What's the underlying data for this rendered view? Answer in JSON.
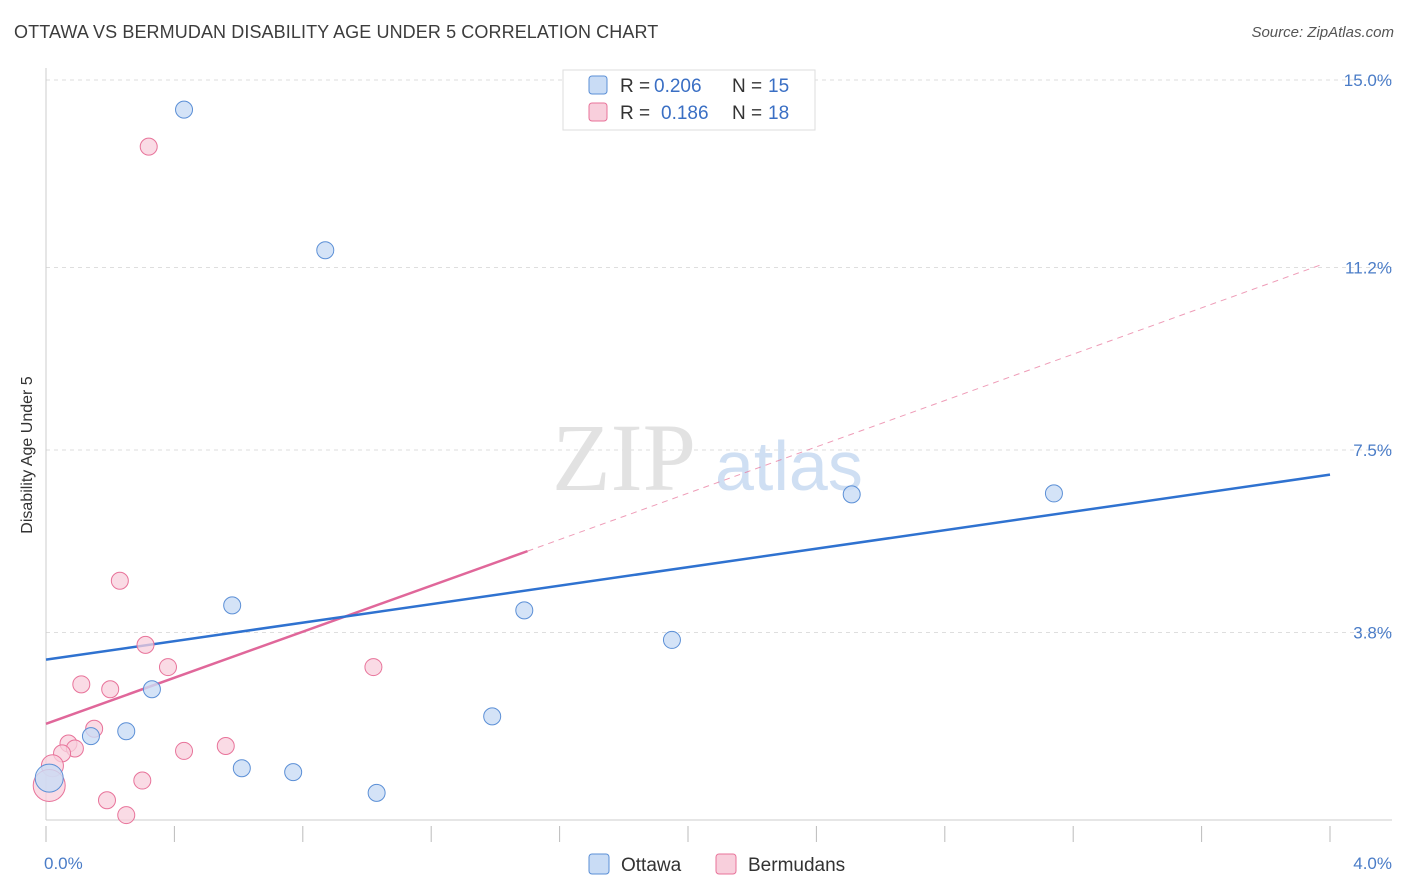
{
  "title": "OTTAWA VS BERMUDAN DISABILITY AGE UNDER 5 CORRELATION CHART",
  "source": "Source: ZipAtlas.com",
  "watermark": {
    "part1": "ZIP",
    "part2": "atlas"
  },
  "legend": {
    "r_label": "R =",
    "n_label": "N =",
    "ottawa": {
      "r": "0.206",
      "n": "15"
    },
    "bermudans": {
      "r": "0.186",
      "n": "18"
    }
  },
  "chart_data": {
    "type": "scatter",
    "title": "OTTAWA VS BERMUDAN DISABILITY AGE UNDER 5 CORRELATION CHART",
    "xlabel": "",
    "ylabel": "Disability Age Under 5",
    "xlim": [
      0.0,
      4.0
    ],
    "ylim": [
      0.0,
      15.0
    ],
    "x_tick_labels": [
      "0.0%",
      "4.0%"
    ],
    "y_ticks": [
      3.8,
      7.5,
      11.2,
      15.0
    ],
    "y_tick_labels": [
      "3.8%",
      "7.5%",
      "11.2%",
      "15.0%"
    ],
    "grid": true,
    "legend_position": "top-center",
    "colors": {
      "ottawa": "#5b8fd6",
      "bermudans": "#e8739a",
      "ottawa_fill": "#c9dcf5",
      "bermudans_fill": "#f8cfdc"
    },
    "series": [
      {
        "name": "Ottawa",
        "points": [
          [
            0.43,
            14.4
          ],
          [
            0.87,
            11.55
          ],
          [
            0.58,
            4.35
          ],
          [
            1.49,
            4.25
          ],
          [
            1.95,
            3.65
          ],
          [
            1.39,
            2.1
          ],
          [
            0.33,
            2.65
          ],
          [
            0.25,
            1.8
          ],
          [
            0.14,
            1.7
          ],
          [
            0.61,
            1.05
          ],
          [
            0.77,
            0.97
          ],
          [
            1.03,
            0.55
          ],
          [
            2.51,
            6.6
          ],
          [
            3.14,
            6.62
          ],
          [
            0.01,
            0.85
          ]
        ],
        "trend": {
          "x": [
            0.0,
            4.0
          ],
          "y": [
            3.25,
            7.0
          ]
        }
      },
      {
        "name": "Bermudans",
        "points": [
          [
            0.32,
            13.65
          ],
          [
            0.23,
            4.85
          ],
          [
            0.31,
            3.55
          ],
          [
            0.38,
            3.1
          ],
          [
            1.02,
            3.1
          ],
          [
            0.11,
            2.75
          ],
          [
            0.2,
            2.65
          ],
          [
            0.15,
            1.85
          ],
          [
            0.07,
            1.55
          ],
          [
            0.09,
            1.45
          ],
          [
            0.05,
            1.35
          ],
          [
            0.43,
            1.4
          ],
          [
            0.56,
            1.5
          ],
          [
            0.3,
            0.8
          ],
          [
            0.19,
            0.4
          ],
          [
            0.25,
            0.1
          ],
          [
            0.02,
            1.1
          ],
          [
            0.01,
            0.7
          ]
        ],
        "trend": {
          "x": [
            0.0,
            1.5
          ],
          "y": [
            1.95,
            5.45
          ]
        },
        "trend_extension": {
          "x": [
            1.5,
            3.97
          ],
          "y": [
            5.45,
            11.25
          ]
        }
      }
    ]
  },
  "bottom_legend": [
    "Ottawa",
    "Bermudans"
  ]
}
